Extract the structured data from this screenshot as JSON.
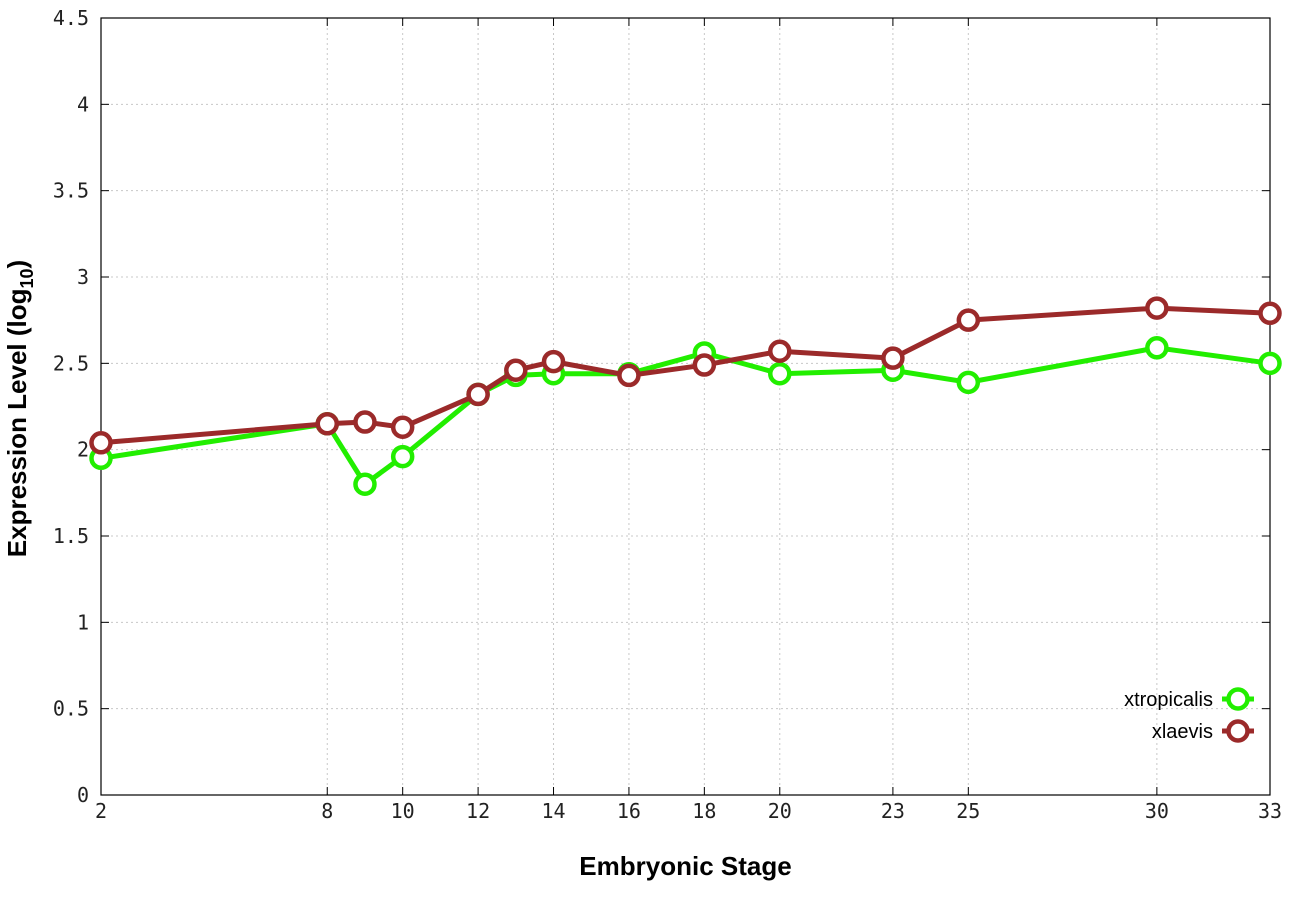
{
  "chart_data": {
    "type": "line",
    "title": "",
    "xlabel": "Embryonic Stage",
    "ylabel_main": "Expression Level (log",
    "ylabel_sub": "10",
    "ylabel_close": ")",
    "xlim": [
      2,
      33
    ],
    "ylim": [
      0,
      4.5
    ],
    "x_ticks": [
      2,
      8,
      10,
      12,
      14,
      16,
      18,
      20,
      23,
      25,
      30,
      33
    ],
    "x_tick_labels": [
      "2",
      "8",
      "10",
      "12",
      "14",
      "16",
      "18",
      "20",
      "23",
      "25",
      "30",
      "33"
    ],
    "y_ticks": [
      0,
      0.5,
      1,
      1.5,
      2,
      2.5,
      3,
      3.5,
      4,
      4.5
    ],
    "y_tick_labels": [
      "0",
      "0.5",
      "1",
      "1.5",
      "2",
      "2.5",
      "3",
      "3.5",
      "4",
      "4.5"
    ],
    "grid": true,
    "legend_position": "bottom-right",
    "x": [
      2,
      8,
      9,
      10,
      12,
      13,
      14,
      16,
      18,
      20,
      23,
      25,
      30,
      33
    ],
    "series": [
      {
        "name": "xtropicalis",
        "color": "#22ee00",
        "values": [
          1.95,
          2.15,
          1.8,
          1.96,
          2.32,
          2.43,
          2.44,
          2.44,
          2.56,
          2.44,
          2.46,
          2.39,
          2.59,
          2.5
        ]
      },
      {
        "name": "xlaevis",
        "color": "#9b2a2a",
        "values": [
          2.04,
          2.15,
          2.16,
          2.13,
          2.32,
          2.46,
          2.51,
          2.43,
          2.49,
          2.57,
          2.53,
          2.75,
          2.82,
          2.79
        ]
      }
    ]
  }
}
